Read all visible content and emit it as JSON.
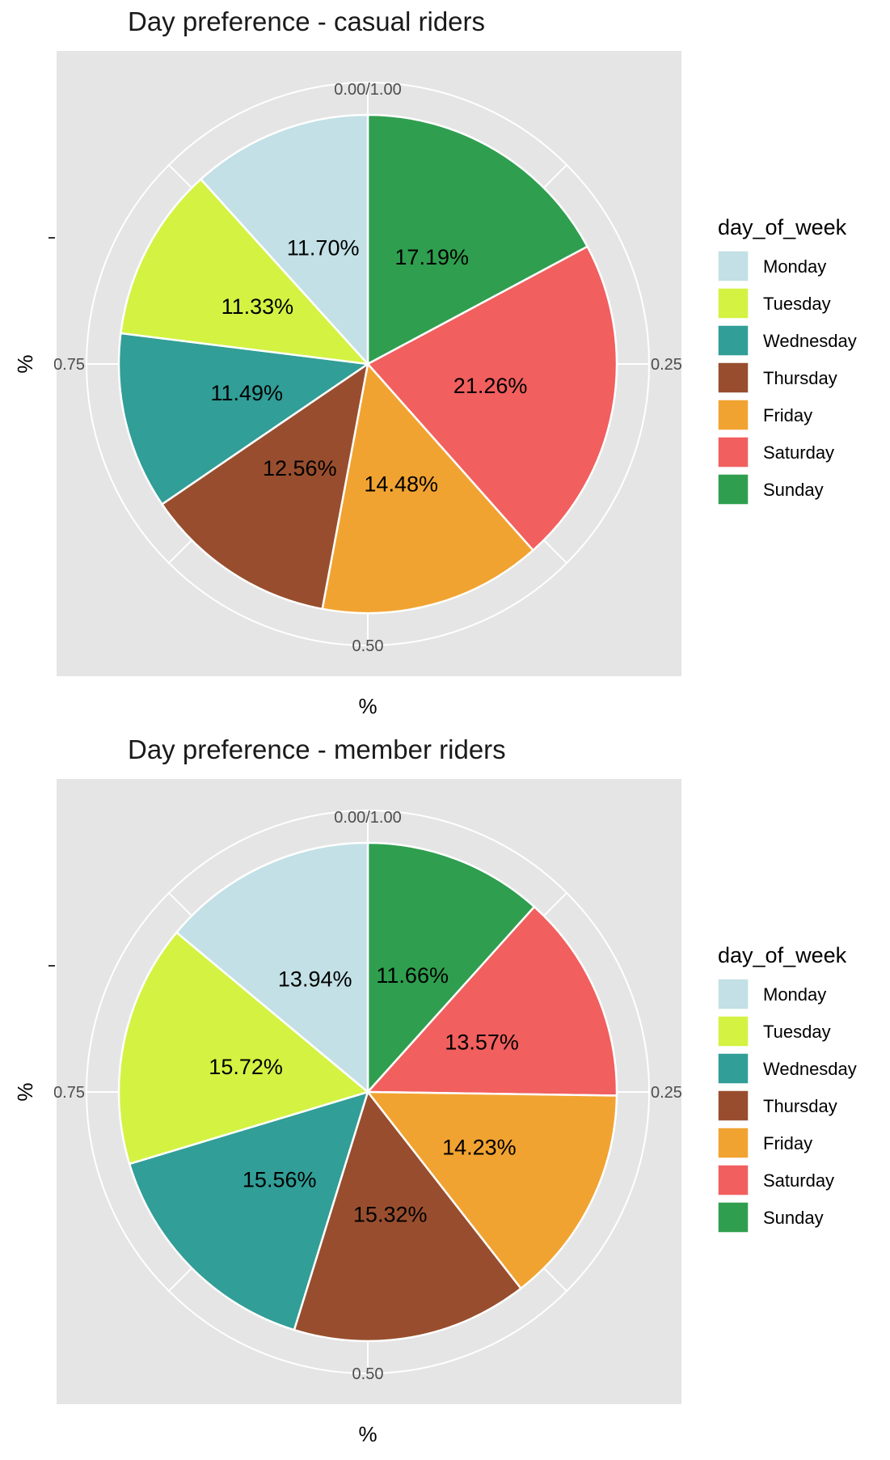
{
  "chart_data": [
    {
      "type": "pie",
      "title": "Day preference - casual riders",
      "xlabel": "%",
      "ylabel": "%",
      "legend_title": "day_of_week",
      "legend_position": "right",
      "axis_ticks": [
        "0.00/1.00",
        "0.25",
        "0.50",
        "0.75"
      ],
      "grid": true,
      "slices": [
        {
          "label": "Sunday",
          "value": 17.19,
          "value_label": "17.19%"
        },
        {
          "label": "Saturday",
          "value": 21.26,
          "value_label": "21.26%"
        },
        {
          "label": "Friday",
          "value": 14.48,
          "value_label": "14.48%"
        },
        {
          "label": "Thursday",
          "value": 12.56,
          "value_label": "12.56%"
        },
        {
          "label": "Wednesday",
          "value": 11.49,
          "value_label": "11.49%"
        },
        {
          "label": "Tuesday",
          "value": 11.33,
          "value_label": "11.33%"
        },
        {
          "label": "Monday",
          "value": 11.7,
          "value_label": "11.70%"
        }
      ]
    },
    {
      "type": "pie",
      "title": "Day preference - member riders",
      "xlabel": "%",
      "ylabel": "%",
      "legend_title": "day_of_week",
      "legend_position": "right",
      "axis_ticks": [
        "0.00/1.00",
        "0.25",
        "0.50",
        "0.75"
      ],
      "grid": true,
      "slices": [
        {
          "label": "Sunday",
          "value": 11.66,
          "value_label": "11.66%"
        },
        {
          "label": "Saturday",
          "value": 13.57,
          "value_label": "13.57%"
        },
        {
          "label": "Friday",
          "value": 14.23,
          "value_label": "14.23%"
        },
        {
          "label": "Thursday",
          "value": 15.32,
          "value_label": "15.32%"
        },
        {
          "label": "Wednesday",
          "value": 15.56,
          "value_label": "15.56%"
        },
        {
          "label": "Tuesday",
          "value": 15.72,
          "value_label": "15.72%"
        },
        {
          "label": "Monday",
          "value": 13.94,
          "value_label": "13.94%"
        }
      ]
    }
  ],
  "legend_items": [
    "Monday",
    "Tuesday",
    "Wednesday",
    "Thursday",
    "Friday",
    "Saturday",
    "Sunday"
  ],
  "colors": {
    "Monday": "#C2E0E5",
    "Tuesday": "#D3F242",
    "Wednesday": "#319E97",
    "Thursday": "#984E2E",
    "Friday": "#F1A331",
    "Saturday": "#F15F5E",
    "Sunday": "#2F9E4F",
    "panel": "#E5E5E5",
    "grid": "#FFFFFF",
    "axis_text": "#4D4D4D"
  }
}
